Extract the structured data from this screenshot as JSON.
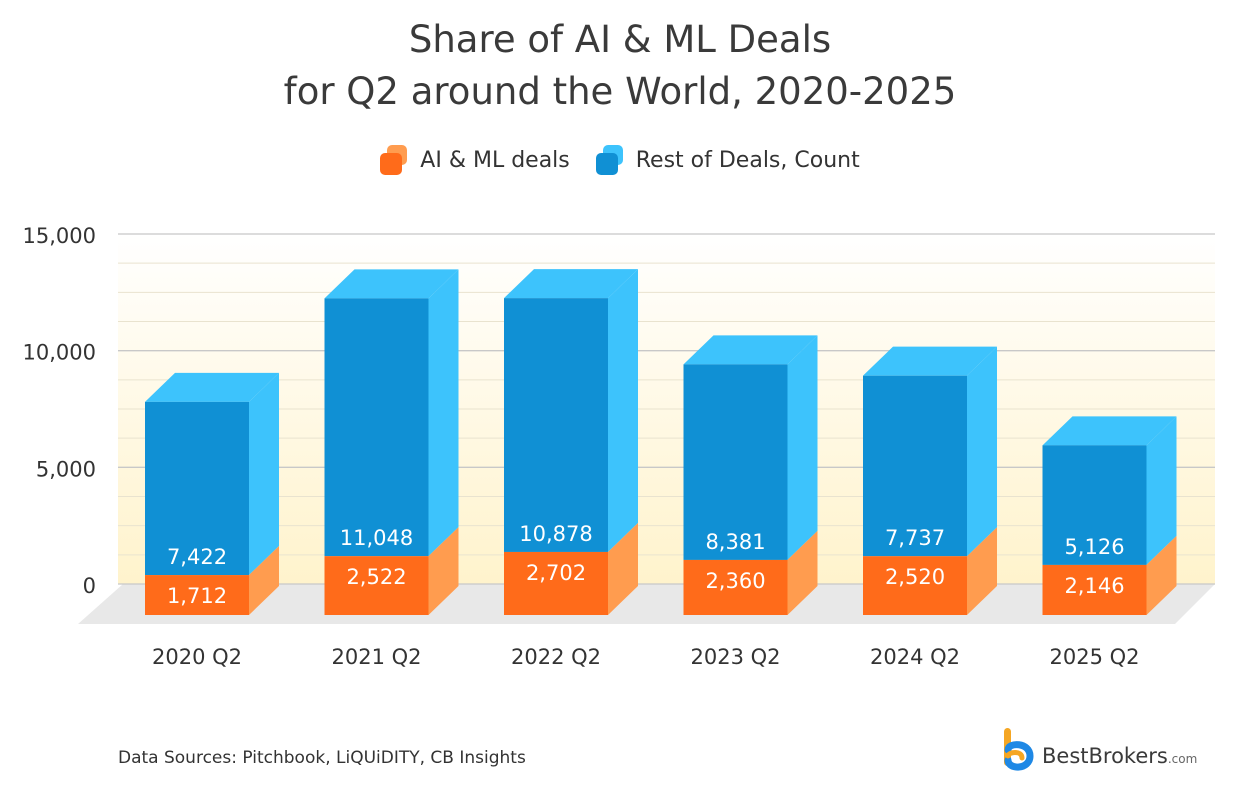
{
  "title_line1": "Share of AI & ML Deals",
  "title_line2": "for Q2 around the World, 2020-2025",
  "legend": {
    "ai_label": "AI & ML deals",
    "rest_label": "Rest of Deals, Count"
  },
  "colors": {
    "ai_front": "#ff6b1a",
    "ai_side": "#ff9c4f",
    "rest_front": "#1090d4",
    "rest_side": "#3dc3fc",
    "rest_top": "#3dc3fc",
    "plot_bg_top": "#ffffff",
    "plot_bg_bottom": "#fff3cc",
    "floor": "#e8e8e8"
  },
  "source": "Data Sources: Pitchbook, LiQUiDITY, CB Insights",
  "brand": {
    "name": "BestBrokers",
    "suffix": ".com",
    "icon": "bestbrokers-logo-icon"
  },
  "chart_data": {
    "type": "bar",
    "stacked": true,
    "categories": [
      "2020 Q2",
      "2021 Q2",
      "2022 Q2",
      "2023 Q2",
      "2024 Q2",
      "2025 Q2"
    ],
    "series": [
      {
        "name": "AI & ML deals",
        "values": [
          1712,
          2522,
          2702,
          2360,
          2520,
          2146
        ]
      },
      {
        "name": "Rest of Deals, Count",
        "values": [
          7422,
          11048,
          10878,
          8381,
          7737,
          5126
        ]
      }
    ],
    "y_ticks": [
      "0",
      "5,000",
      "10,000",
      "15,000"
    ],
    "ylim": [
      0,
      15000
    ],
    "grid": true,
    "legend_position": "top-center"
  }
}
